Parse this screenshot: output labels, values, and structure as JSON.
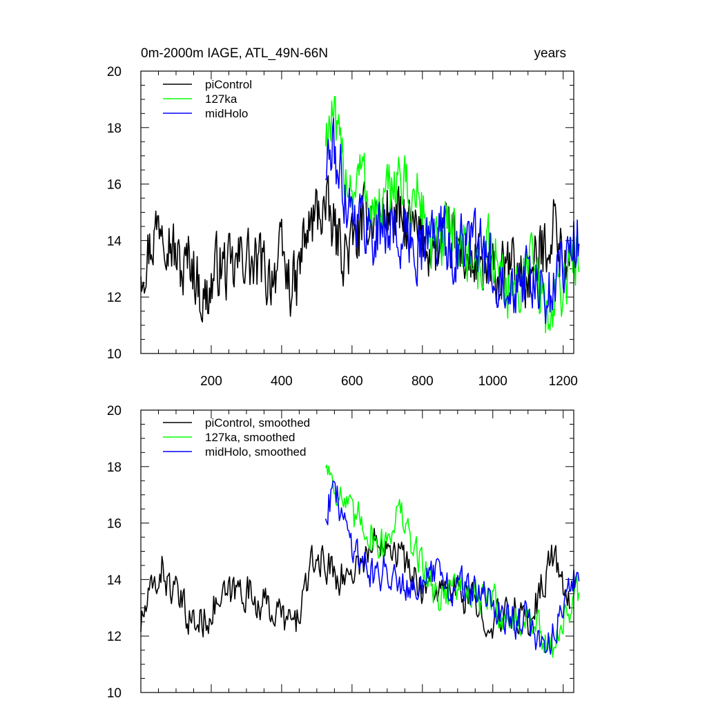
{
  "chart_data": [
    {
      "type": "line",
      "title_left": "0m-2000m IAGE, ATL_49N-66N",
      "title_right": "years",
      "xlim": [
        0,
        1230
      ],
      "ylim": [
        10,
        20
      ],
      "x_ticks": [
        200,
        400,
        600,
        800,
        1000,
        1200
      ],
      "x_tick_labels": [
        "200",
        "400",
        "600",
        "800",
        "1000",
        "1200"
      ],
      "y_ticks": [
        10,
        12,
        14,
        16,
        18,
        20
      ],
      "y_tick_labels": [
        "10",
        "12",
        "14",
        "16",
        "18",
        "20"
      ],
      "legend_placement": "top-left",
      "series": [
        {
          "name": "piControl",
          "color": "#000000",
          "x_start": 0,
          "x_step": 20,
          "values": [
            13.2,
            13.6,
            14.3,
            15.0,
            14.2,
            13.4,
            12.8,
            13.5,
            12.6,
            11.8,
            12.4,
            13.2,
            13.0,
            12.8,
            13.3,
            13.6,
            12.9,
            13.2,
            12.7,
            13.0,
            13.4,
            12.6,
            12.2,
            13.8,
            14.4,
            15.0,
            15.2,
            14.6,
            14.0,
            13.6,
            13.8,
            14.2,
            14.8,
            15.0,
            14.8,
            15.1,
            14.9,
            14.6,
            14.4,
            14.2,
            14.1,
            13.8,
            13.6,
            13.9,
            14.0,
            13.8,
            13.5,
            13.2,
            13.0,
            12.8,
            12.7,
            12.6,
            12.9,
            13.1,
            12.8,
            12.6,
            13.0,
            13.6,
            14.2,
            14.8,
            13.2,
            13.0
          ]
        },
        {
          "name": "127ka",
          "color": "#00ff00",
          "x_start": 525,
          "x_step": 20,
          "values": [
            17.8,
            18.4,
            17.0,
            16.4,
            15.8,
            16.5,
            15.6,
            15.0,
            14.8,
            15.6,
            16.4,
            16.0,
            15.2,
            15.6,
            15.0,
            13.8,
            13.6,
            14.2,
            13.9,
            14.1,
            13.6,
            13.4,
            13.0,
            13.8,
            13.4,
            12.8,
            12.4,
            12.2,
            12.8,
            13.1,
            12.6,
            11.6,
            11.2,
            12.4,
            12.6,
            13.2,
            13.8
          ]
        },
        {
          "name": "midHolo",
          "color": "#0000ff",
          "x_start": 525,
          "x_step": 20,
          "values": [
            16.6,
            17.2,
            16.4,
            15.6,
            15.1,
            14.8,
            14.6,
            14.2,
            14.4,
            14.6,
            14.2,
            14.0,
            14.0,
            13.9,
            13.8,
            14.2,
            14.4,
            14.0,
            13.6,
            13.8,
            14.0,
            13.8,
            13.6,
            13.3,
            13.0,
            13.0,
            12.8,
            12.6,
            12.8,
            12.6,
            12.2,
            11.8,
            12.2,
            12.8,
            13.6,
            13.8,
            14.0
          ]
        }
      ]
    },
    {
      "type": "line",
      "xlim": [
        0,
        1230
      ],
      "ylim": [
        10,
        20
      ],
      "y_ticks": [
        10,
        12,
        14,
        16,
        18,
        20
      ],
      "y_tick_labels": [
        "10",
        "12",
        "14",
        "16",
        "18",
        "20"
      ],
      "legend_placement": "top-left",
      "series": [
        {
          "name": "piControl, smoothed",
          "color": "#000000",
          "x_start": 0,
          "x_step": 20,
          "values": [
            12.4,
            13.2,
            13.8,
            14.4,
            13.8,
            13.4,
            13.0,
            12.6,
            12.4,
            12.6,
            12.9,
            13.2,
            13.3,
            13.5,
            13.7,
            13.6,
            13.4,
            13.2,
            13.0,
            12.9,
            12.7,
            12.5,
            12.4,
            13.4,
            14.2,
            14.8,
            14.6,
            14.4,
            14.2,
            14.0,
            14.4,
            14.6,
            14.8,
            15.2,
            15.5,
            15.6,
            15.2,
            14.8,
            14.4,
            14.0,
            13.8,
            13.7,
            13.6,
            13.4,
            13.6,
            13.6,
            13.4,
            13.2,
            12.9,
            12.8,
            12.6,
            12.5,
            12.7,
            12.9,
            12.7,
            12.5,
            13.0,
            13.8,
            14.6,
            14.8,
            13.4,
            13.2
          ]
        },
        {
          "name": "127ka, smoothed",
          "color": "#00ff00",
          "x_start": 525,
          "x_step": 20,
          "values": [
            18.2,
            17.6,
            17.0,
            16.6,
            16.0,
            16.2,
            15.8,
            15.4,
            15.2,
            15.6,
            16.4,
            16.2,
            15.2,
            15.0,
            14.4,
            13.8,
            13.4,
            13.6,
            13.8,
            13.8,
            13.6,
            13.4,
            13.1,
            13.4,
            13.2,
            12.8,
            12.6,
            12.4,
            12.6,
            12.8,
            12.4,
            11.6,
            11.4,
            12.2,
            12.6,
            13.0,
            13.6
          ]
        },
        {
          "name": "midHolo, smoothed",
          "color": "#0000ff",
          "x_start": 525,
          "x_step": 20,
          "values": [
            16.4,
            17.2,
            16.6,
            15.8,
            15.2,
            14.8,
            14.4,
            14.2,
            14.2,
            14.4,
            14.2,
            14.0,
            13.9,
            13.8,
            13.8,
            14.0,
            14.2,
            13.9,
            13.6,
            13.7,
            13.8,
            13.6,
            13.4,
            13.2,
            13.0,
            12.9,
            12.7,
            12.6,
            12.6,
            12.4,
            12.0,
            11.6,
            12.0,
            12.6,
            13.4,
            13.8,
            14.0
          ]
        }
      ]
    }
  ]
}
